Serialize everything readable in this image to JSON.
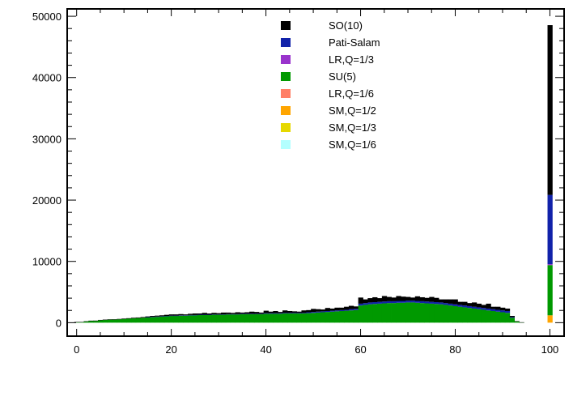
{
  "chart_data": {
    "type": "bar",
    "stacked": true,
    "title": "",
    "xlabel": "",
    "ylabel": "",
    "xlim": [
      -2,
      103
    ],
    "ylim": [
      -2200,
      51200
    ],
    "grid": false,
    "legend_position": "top-center",
    "x_ticks": [
      0,
      20,
      40,
      60,
      80,
      100
    ],
    "x_tick_labels": [
      "0",
      "20",
      "40",
      "60",
      "80",
      "100"
    ],
    "y_ticks": [
      0,
      10000,
      20000,
      30000,
      40000,
      50000
    ],
    "y_tick_labels": [
      "0",
      "10000",
      "20000",
      "30000",
      "40000",
      "50000"
    ],
    "x": [
      0,
      1,
      2,
      3,
      4,
      5,
      6,
      7,
      8,
      9,
      10,
      11,
      12,
      13,
      14,
      15,
      16,
      17,
      18,
      19,
      20,
      21,
      22,
      23,
      24,
      25,
      26,
      27,
      28,
      29,
      30,
      31,
      32,
      33,
      34,
      35,
      36,
      37,
      38,
      39,
      40,
      41,
      42,
      43,
      44,
      45,
      46,
      47,
      48,
      49,
      50,
      51,
      52,
      53,
      54,
      55,
      56,
      57,
      58,
      59,
      60,
      61,
      62,
      63,
      64,
      65,
      66,
      67,
      68,
      69,
      70,
      71,
      72,
      73,
      74,
      75,
      76,
      77,
      78,
      79,
      80,
      81,
      82,
      83,
      84,
      85,
      86,
      87,
      88,
      89,
      90,
      91,
      92,
      93,
      94,
      95,
      96,
      97,
      98,
      99,
      100
    ],
    "series": [
      {
        "name": "SM,Q=1/6",
        "color": "#b3ffff",
        "values": [
          0,
          0,
          0,
          0,
          0,
          0,
          0,
          0,
          0,
          0,
          0,
          0,
          0,
          0,
          0,
          0,
          0,
          0,
          0,
          0,
          0,
          0,
          0,
          0,
          0,
          0,
          0,
          0,
          0,
          0,
          0,
          0,
          0,
          0,
          0,
          0,
          0,
          0,
          0,
          0,
          0,
          0,
          0,
          0,
          0,
          0,
          0,
          0,
          0,
          0,
          0,
          0,
          0,
          0,
          0,
          0,
          0,
          0,
          0,
          0,
          0,
          0,
          0,
          0,
          0,
          0,
          0,
          0,
          0,
          0,
          0,
          0,
          0,
          0,
          0,
          0,
          0,
          0,
          0,
          0,
          0,
          0,
          0,
          0,
          0,
          0,
          0,
          0,
          0,
          0,
          0,
          0,
          0,
          0,
          0,
          0,
          0,
          0,
          0,
          0,
          0
        ]
      },
      {
        "name": "SM,Q=1/3",
        "color": "#e6d800",
        "values": [
          0,
          0,
          0,
          0,
          0,
          0,
          0,
          0,
          0,
          0,
          0,
          0,
          0,
          0,
          0,
          0,
          0,
          0,
          0,
          0,
          0,
          0,
          0,
          0,
          0,
          0,
          0,
          0,
          0,
          0,
          0,
          0,
          0,
          0,
          0,
          0,
          0,
          0,
          0,
          0,
          0,
          0,
          0,
          0,
          0,
          0,
          0,
          0,
          0,
          0,
          0,
          0,
          0,
          0,
          0,
          0,
          0,
          0,
          0,
          0,
          0,
          0,
          0,
          0,
          0,
          0,
          0,
          0,
          0,
          0,
          0,
          0,
          0,
          0,
          0,
          0,
          0,
          0,
          0,
          0,
          0,
          0,
          0,
          0,
          0,
          0,
          0,
          0,
          0,
          0,
          0,
          0,
          0,
          0,
          0,
          0,
          0,
          0,
          0,
          0,
          0
        ]
      },
      {
        "name": "SM,Q=1/2",
        "color": "#ffa500",
        "values": [
          0,
          0,
          0,
          0,
          0,
          0,
          0,
          0,
          0,
          0,
          0,
          0,
          0,
          0,
          0,
          0,
          0,
          0,
          0,
          0,
          0,
          0,
          0,
          0,
          0,
          0,
          0,
          0,
          0,
          0,
          0,
          0,
          0,
          0,
          0,
          0,
          0,
          0,
          0,
          0,
          0,
          0,
          0,
          0,
          0,
          0,
          0,
          0,
          0,
          0,
          0,
          0,
          0,
          0,
          0,
          0,
          0,
          0,
          0,
          0,
          0,
          0,
          0,
          0,
          0,
          0,
          0,
          0,
          0,
          0,
          0,
          0,
          0,
          0,
          0,
          0,
          0,
          0,
          0,
          0,
          0,
          0,
          0,
          0,
          0,
          0,
          0,
          0,
          0,
          0,
          0,
          0,
          0,
          0,
          0,
          0,
          0,
          0,
          0,
          0,
          1200
        ]
      },
      {
        "name": "LR,Q=1/6",
        "color": "#ff7f66",
        "values": [
          0,
          0,
          0,
          0,
          0,
          0,
          0,
          0,
          0,
          0,
          0,
          0,
          0,
          0,
          0,
          0,
          0,
          0,
          0,
          0,
          0,
          0,
          0,
          0,
          0,
          0,
          0,
          0,
          0,
          0,
          0,
          0,
          0,
          0,
          0,
          0,
          0,
          0,
          0,
          0,
          0,
          0,
          0,
          0,
          0,
          0,
          0,
          0,
          0,
          0,
          0,
          0,
          0,
          0,
          0,
          0,
          0,
          0,
          0,
          0,
          0,
          0,
          0,
          0,
          0,
          0,
          0,
          0,
          0,
          0,
          0,
          0,
          0,
          0,
          0,
          0,
          0,
          0,
          0,
          0,
          0,
          0,
          0,
          0,
          0,
          0,
          0,
          0,
          0,
          0,
          0,
          0,
          0,
          0,
          0,
          0,
          0,
          0,
          0,
          0,
          0
        ]
      },
      {
        "name": "SU(5)",
        "color": "#009900",
        "values": [
          100,
          100,
          200,
          300,
          300,
          400,
          450,
          500,
          500,
          550,
          600,
          650,
          700,
          750,
          800,
          850,
          900,
          950,
          1000,
          1050,
          1100,
          1100,
          1150,
          1150,
          1200,
          1200,
          1250,
          1250,
          1250,
          1300,
          1300,
          1300,
          1350,
          1350,
          1350,
          1400,
          1400,
          1400,
          1400,
          1400,
          1450,
          1450,
          1450,
          1450,
          1500,
          1500,
          1500,
          1500,
          1500,
          1550,
          1600,
          1650,
          1700,
          1750,
          1800,
          1850,
          1900,
          1950,
          2000,
          2050,
          2800,
          2900,
          3000,
          3050,
          3100,
          3150,
          3200,
          3200,
          3250,
          3250,
          3300,
          3300,
          3250,
          3200,
          3150,
          3100,
          3050,
          3000,
          2900,
          2800,
          2700,
          2600,
          2500,
          2400,
          2300,
          2200,
          2100,
          2000,
          1900,
          1800,
          1700,
          1600,
          800,
          200,
          50,
          0,
          0,
          0,
          0,
          0,
          8200
        ]
      },
      {
        "name": "LR,Q=1/3",
        "color": "#9933cc",
        "values": [
          0,
          0,
          0,
          0,
          0,
          0,
          0,
          0,
          0,
          0,
          0,
          0,
          0,
          0,
          0,
          0,
          0,
          0,
          0,
          0,
          0,
          0,
          0,
          0,
          0,
          0,
          0,
          0,
          0,
          0,
          0,
          0,
          0,
          0,
          0,
          0,
          0,
          0,
          0,
          0,
          0,
          0,
          0,
          0,
          0,
          0,
          0,
          0,
          0,
          0,
          0,
          0,
          0,
          0,
          0,
          0,
          0,
          0,
          0,
          0,
          0,
          0,
          0,
          0,
          0,
          0,
          0,
          0,
          0,
          0,
          0,
          0,
          0,
          0,
          0,
          0,
          0,
          0,
          0,
          0,
          0,
          0,
          0,
          0,
          0,
          0,
          0,
          0,
          0,
          0,
          0,
          0,
          0,
          0,
          0,
          0,
          0,
          0,
          0,
          0,
          150
        ]
      },
      {
        "name": "Pati-Salam",
        "color": "#1122aa",
        "values": [
          0,
          0,
          0,
          0,
          0,
          0,
          0,
          0,
          0,
          0,
          0,
          0,
          0,
          0,
          0,
          50,
          50,
          50,
          50,
          50,
          50,
          50,
          50,
          50,
          50,
          50,
          50,
          50,
          50,
          50,
          50,
          50,
          50,
          50,
          50,
          50,
          50,
          50,
          50,
          50,
          100,
          100,
          100,
          100,
          100,
          100,
          100,
          100,
          100,
          150,
          150,
          150,
          150,
          150,
          150,
          150,
          150,
          150,
          200,
          200,
          300,
          300,
          300,
          300,
          300,
          300,
          300,
          300,
          300,
          300,
          300,
          300,
          300,
          300,
          300,
          300,
          300,
          300,
          300,
          300,
          300,
          300,
          300,
          300,
          300,
          300,
          300,
          300,
          300,
          300,
          300,
          300,
          100,
          0,
          0,
          0,
          0,
          0,
          0,
          0,
          11300
        ]
      },
      {
        "name": "SO(10)",
        "color": "#000000",
        "values": [
          20,
          20,
          30,
          30,
          40,
          50,
          50,
          50,
          60,
          60,
          80,
          80,
          100,
          100,
          120,
          120,
          150,
          150,
          150,
          180,
          200,
          200,
          200,
          150,
          200,
          250,
          200,
          300,
          200,
          250,
          200,
          300,
          250,
          200,
          300,
          200,
          250,
          350,
          300,
          200,
          400,
          250,
          350,
          200,
          400,
          300,
          250,
          200,
          400,
          350,
          500,
          400,
          300,
          500,
          350,
          450,
          400,
          500,
          550,
          400,
          1000,
          600,
          700,
          800,
          600,
          900,
          700,
          600,
          800,
          700,
          600,
          500,
          750,
          650,
          600,
          800,
          700,
          500,
          600,
          700,
          800,
          500,
          600,
          500,
          700,
          600,
          500,
          800,
          400,
          500,
          450,
          400,
          200,
          50,
          20,
          0,
          0,
          0,
          0,
          0,
          27700
        ]
      }
    ]
  }
}
